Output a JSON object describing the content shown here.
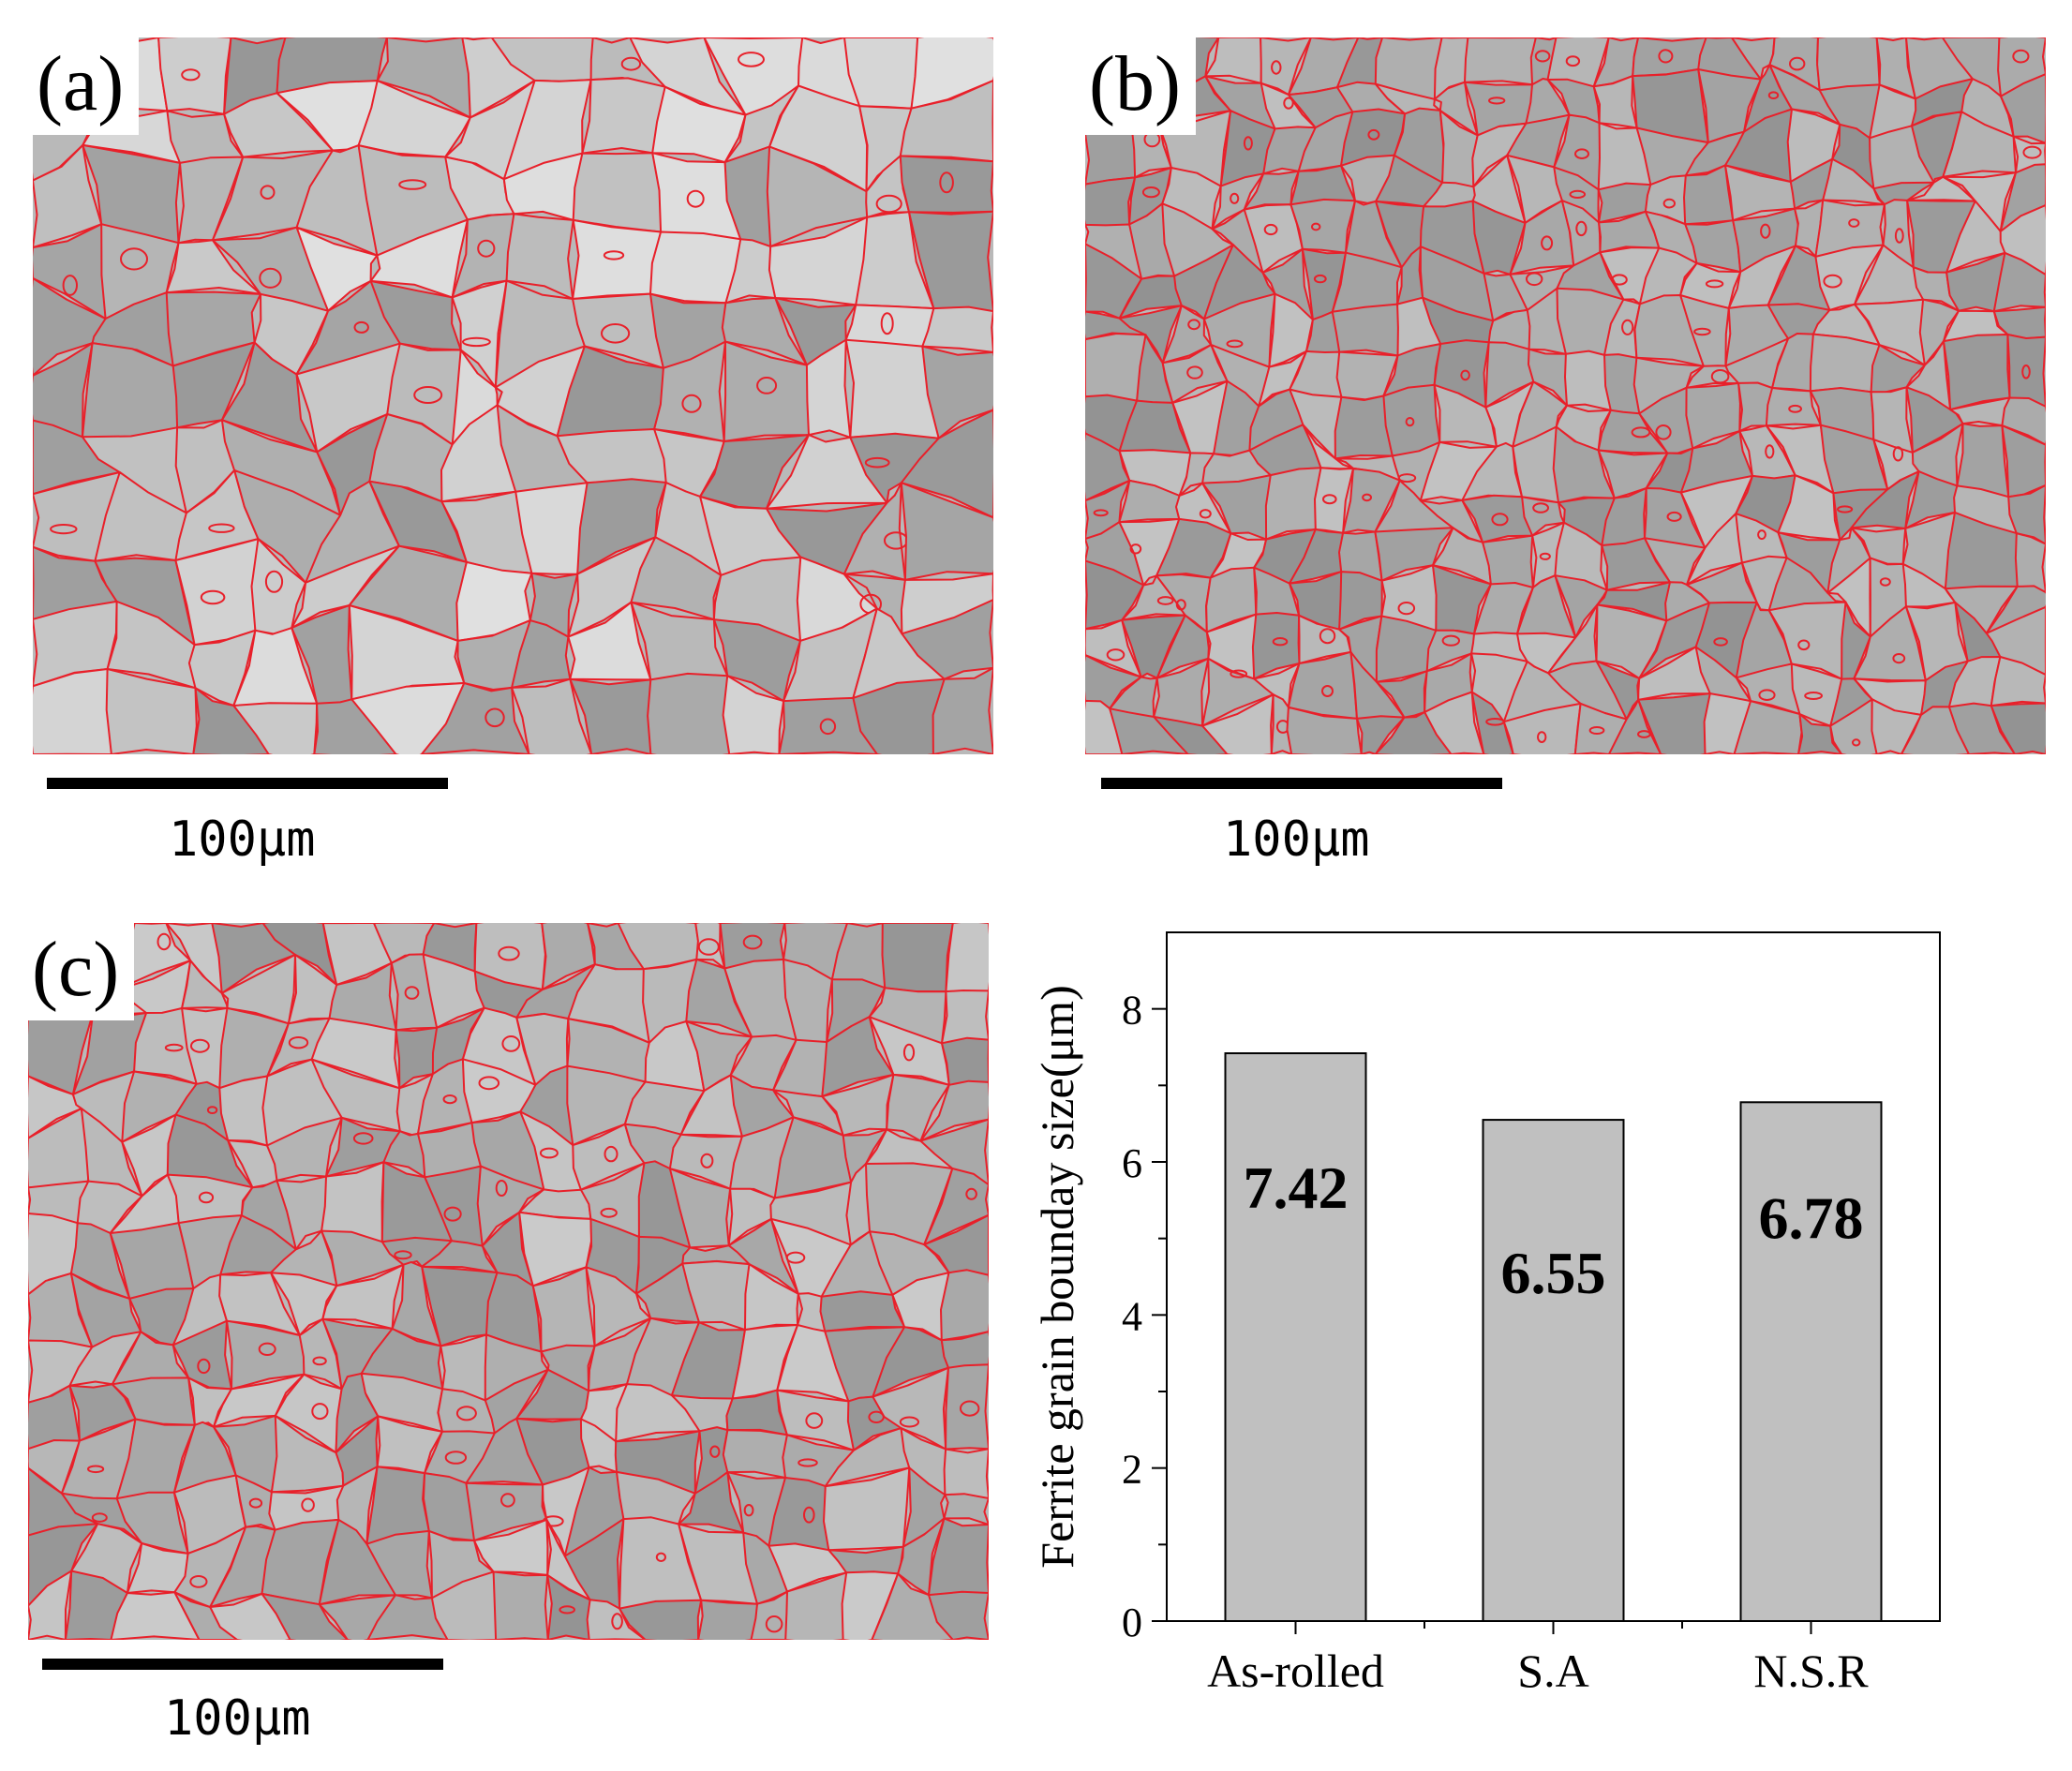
{
  "figure": {
    "panels": [
      {
        "id": "a",
        "label": "(a)",
        "scale_label": "100μm",
        "tone": "light"
      },
      {
        "id": "b",
        "label": "(b)",
        "scale_label": "100μm",
        "tone": "fine"
      },
      {
        "id": "c",
        "label": "(c)",
        "scale_label": "100μm",
        "tone": "medium"
      }
    ],
    "colors": {
      "boundary": "#e8202a",
      "bar_fill": "#c0c0c0",
      "bar_stroke": "#000000"
    }
  },
  "chart_data": {
    "type": "bar",
    "categories": [
      "As-rolled",
      "S.A",
      "N.S.R"
    ],
    "values": [
      7.42,
      6.55,
      6.78
    ],
    "data_labels": [
      "7.42",
      "6.55",
      "6.78"
    ],
    "title": "",
    "xlabel": "",
    "ylabel": "Ferrite grain bounday size(μm)",
    "ylim": [
      0,
      9
    ],
    "yticks": [
      0,
      2,
      4,
      6,
      8
    ],
    "grid": false
  }
}
